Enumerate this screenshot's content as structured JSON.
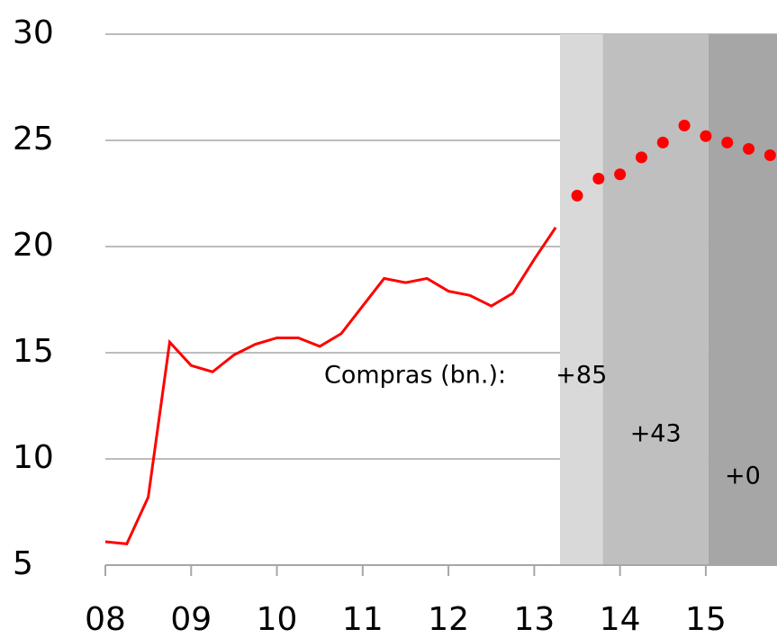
{
  "chart_data": {
    "type": "line",
    "xlim": [
      2008,
      2015.83
    ],
    "ylim": [
      5,
      30
    ],
    "xticks": [
      {
        "value": 2008,
        "label": "08"
      },
      {
        "value": 2009,
        "label": "09"
      },
      {
        "value": 2010,
        "label": "10"
      },
      {
        "value": 2011,
        "label": "11"
      },
      {
        "value": 2012,
        "label": "12"
      },
      {
        "value": 2013,
        "label": "13"
      },
      {
        "value": 2014,
        "label": "14"
      },
      {
        "value": 2015,
        "label": "15"
      }
    ],
    "yticks": [
      5,
      10,
      15,
      20,
      25,
      30
    ],
    "grid": true,
    "series": [
      {
        "style": "line",
        "color": "#ff0000",
        "x": [
          2008,
          2008.25,
          2008.5,
          2008.75,
          2009,
          2009.25,
          2009.5,
          2009.75,
          2010,
          2010.25,
          2010.5,
          2010.75,
          2011,
          2011.25,
          2011.5,
          2011.75,
          2012,
          2012.25,
          2012.5,
          2012.75,
          2013,
          2013.25
        ],
        "values": [
          6.1,
          6.0,
          8.2,
          15.5,
          14.4,
          14.1,
          14.9,
          15.4,
          15.7,
          15.7,
          15.3,
          15.9,
          17.2,
          18.5,
          18.3,
          18.5,
          17.9,
          17.7,
          17.2,
          17.8,
          19.4,
          20.9
        ]
      },
      {
        "style": "dots",
        "color": "#ff0000",
        "x": [
          2013.5,
          2013.75,
          2014,
          2014.25,
          2014.5,
          2014.75,
          2015,
          2015.25,
          2015.5,
          2015.75
        ],
        "values": [
          22.4,
          23.2,
          23.4,
          24.2,
          24.9,
          25.7,
          25.2,
          24.9,
          24.6,
          24.3
        ]
      }
    ],
    "regions": [
      {
        "start": 2013.3,
        "end": 2013.8,
        "color": "#d9d9d9",
        "label": "+85"
      },
      {
        "start": 2013.8,
        "end": 2015.03,
        "color": "#bfbfbf",
        "label": "+43"
      },
      {
        "start": 2015.03,
        "end": 2015.83,
        "color": "#a6a6a6",
        "label": "+0"
      }
    ],
    "annotation": "Compras (bn.):"
  }
}
